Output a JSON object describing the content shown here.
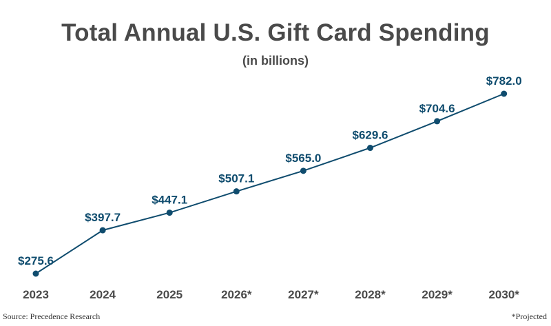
{
  "chart_data": {
    "type": "line",
    "title": "Total Annual U.S. Gift Card Spending",
    "subtitle": "(in billions)",
    "categories": [
      "2023",
      "2024",
      "2025",
      "2026*",
      "2027*",
      "2028*",
      "2029*",
      "2030*"
    ],
    "series": [
      {
        "values": [
          275.6,
          397.7,
          447.1,
          507.1,
          565.0,
          629.6,
          704.6,
          782.0
        ],
        "labels": [
          "$275.6",
          "$397.7",
          "$447.1",
          "$507.1",
          "$565.0",
          "$629.6",
          "$704.6",
          "$782.0"
        ],
        "color": "#0f4c6e"
      }
    ],
    "xlabel": "",
    "ylabel": "",
    "grid": false,
    "legend": "none"
  },
  "footer": {
    "source": "Source: Precedence Research",
    "note": "*Projected"
  }
}
